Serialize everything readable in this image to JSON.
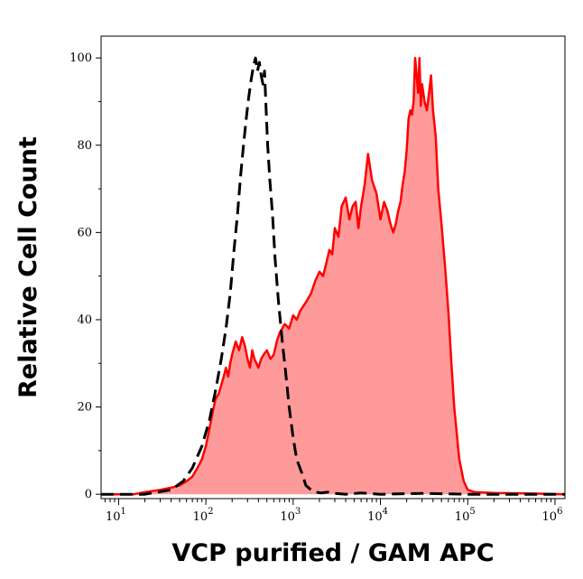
{
  "chart_data": {
    "type": "area",
    "xlabel": "VCP purified / GAM APC",
    "ylabel": "Relative Cell Count",
    "x_scale": "log",
    "xlim": [
      6.3,
      1300000
    ],
    "ylim": [
      -1,
      105
    ],
    "x_ticks": [
      {
        "value": 10,
        "base": "10",
        "exp": "1"
      },
      {
        "value": 100,
        "base": "10",
        "exp": "2"
      },
      {
        "value": 1000,
        "base": "10",
        "exp": "3"
      },
      {
        "value": 10000,
        "base": "10",
        "exp": "4"
      },
      {
        "value": 100000,
        "base": "10",
        "exp": "5"
      },
      {
        "value": 1000000,
        "base": "10",
        "exp": "6"
      }
    ],
    "y_ticks": [
      {
        "value": 0,
        "label": "0"
      },
      {
        "value": 20,
        "label": "20"
      },
      {
        "value": 40,
        "label": "40"
      },
      {
        "value": 60,
        "label": "60"
      },
      {
        "value": 80,
        "label": "80"
      },
      {
        "value": 100,
        "label": "100"
      }
    ],
    "grid": false,
    "series": [
      {
        "style": "dashed-black-outline",
        "color": "#000000",
        "x": [
          6.3,
          20,
          40,
          55,
          70,
          90,
          110,
          130,
          150,
          170,
          190,
          210,
          230,
          250,
          270,
          290,
          310,
          330,
          350,
          370,
          390,
          410,
          430,
          450,
          470,
          490,
          510,
          540,
          580,
          620,
          680,
          750,
          820,
          900,
          1000,
          1100,
          1250,
          1400,
          1600,
          1800,
          2100,
          2500,
          3000,
          4000,
          6000,
          10000,
          30000,
          100000,
          1300000
        ],
        "y": [
          0,
          0,
          1,
          3,
          6,
          11,
          17,
          24,
          31,
          38,
          46,
          56,
          64,
          73,
          80,
          86,
          91,
          95,
          98,
          100,
          97,
          99,
          96,
          94,
          97,
          88,
          80,
          72,
          64,
          54,
          44,
          35,
          28,
          20,
          13,
          8,
          5,
          2,
          1,
          0.5,
          0.3,
          0.5,
          0.2,
          0,
          0.3,
          0,
          0.2,
          0,
          0
        ]
      },
      {
        "style": "filled-red",
        "color": "#ff0000",
        "fill": "#ff9a9a",
        "x": [
          6.3,
          15,
          20,
          30,
          40,
          50,
          60,
          70,
          80,
          90,
          100,
          110,
          120,
          130,
          140,
          150,
          160,
          170,
          180,
          190,
          200,
          220,
          240,
          260,
          280,
          300,
          320,
          340,
          360,
          380,
          400,
          430,
          460,
          500,
          550,
          600,
          650,
          700,
          800,
          900,
          1000,
          1100,
          1200,
          1400,
          1600,
          1800,
          2000,
          2200,
          2400,
          2600,
          2800,
          3000,
          3300,
          3600,
          4000,
          4400,
          4800,
          5200,
          5600,
          6000,
          6600,
          7200,
          8000,
          9000,
          10000,
          11000,
          12000,
          13000,
          14000,
          15000,
          16000,
          17000,
          18000,
          19000,
          20000,
          21000,
          22000,
          23000,
          24000,
          25000,
          26000,
          27000,
          28000,
          29000,
          30000,
          32000,
          34000,
          36000,
          38000,
          40000,
          43000,
          46000,
          50000,
          55000,
          60000,
          65000,
          70000,
          80000,
          90000,
          100000,
          120000,
          200000,
          500000,
          1300000
        ],
        "y": [
          0,
          0,
          0.5,
          1,
          1.5,
          2,
          3,
          4,
          6,
          8,
          11,
          15,
          19,
          22,
          23,
          25,
          27,
          29,
          27,
          30,
          32,
          35,
          33,
          36,
          34,
          31,
          29,
          33,
          31,
          30,
          29,
          31,
          32,
          33,
          31,
          32,
          35,
          37,
          39,
          38,
          41,
          40,
          42,
          44,
          46,
          49,
          51,
          50,
          53,
          56,
          55,
          61,
          59,
          66,
          68,
          63,
          66,
          67,
          61,
          66,
          71,
          78,
          72,
          69,
          63,
          67,
          65,
          62,
          60,
          62,
          65,
          67,
          71,
          74,
          79,
          86,
          88,
          87,
          90,
          100,
          96,
          92,
          100,
          89,
          94,
          90,
          88,
          92,
          96,
          88,
          82,
          70,
          62,
          52,
          42,
          30,
          20,
          8,
          3,
          1,
          0.5,
          0.3,
          0.2,
          0
        ]
      }
    ]
  }
}
